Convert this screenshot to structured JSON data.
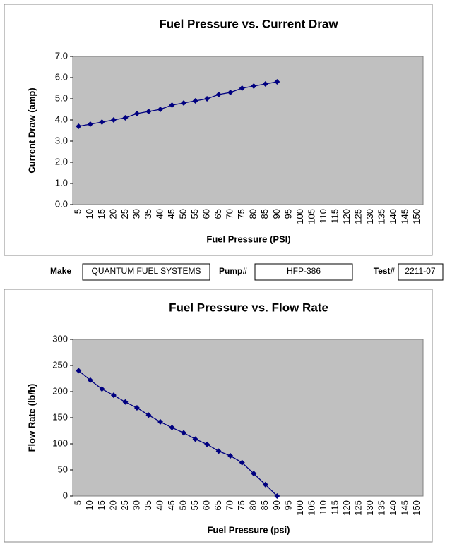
{
  "chart_data": [
    {
      "type": "line",
      "title": "Fuel Pressure vs. Current Draw",
      "x_label": "Fuel Pressure (PSI)",
      "y_label": "Current Draw (amp)",
      "categories": [
        "5",
        "10",
        "15",
        "20",
        "25",
        "30",
        "35",
        "40",
        "45",
        "50",
        "55",
        "60",
        "65",
        "70",
        "75",
        "80",
        "85",
        "90",
        "95",
        "100",
        "105",
        "110",
        "115",
        "120",
        "125",
        "130",
        "135",
        "140",
        "145",
        "150"
      ],
      "values": [
        3.7,
        3.8,
        3.9,
        4.0,
        4.1,
        4.3,
        4.4,
        4.5,
        4.7,
        4.8,
        4.9,
        5.0,
        5.2,
        5.3,
        5.5,
        5.6,
        5.7,
        5.8,
        null,
        null,
        null,
        null,
        null,
        null,
        null,
        null,
        null,
        null,
        null,
        null
      ],
      "color": "#000080",
      "ylim": [
        0,
        7
      ],
      "yticks": [
        {
          "value": 0,
          "label": "0.0"
        },
        {
          "value": 1,
          "label": "1.0"
        },
        {
          "value": 2,
          "label": "2.0"
        },
        {
          "value": 3,
          "label": "3.0"
        },
        {
          "value": 4,
          "label": "4.0"
        },
        {
          "value": 5,
          "label": "5.0"
        },
        {
          "value": 6,
          "label": "6.0"
        },
        {
          "value": 7,
          "label": "7.0"
        }
      ],
      "grid": false
    },
    {
      "type": "line",
      "title": "Fuel Pressure vs. Flow Rate",
      "x_label": "Fuel Pressure (psi)",
      "y_label": "Flow Rate (lb/h)",
      "categories": [
        "5",
        "10",
        "15",
        "20",
        "25",
        "30",
        "35",
        "40",
        "45",
        "50",
        "55",
        "60",
        "65",
        "70",
        "75",
        "80",
        "85",
        "90",
        "95",
        "100",
        "105",
        "110",
        "115",
        "120",
        "125",
        "130",
        "135",
        "140",
        "145",
        "150"
      ],
      "values": [
        240,
        222,
        205,
        193,
        180,
        169,
        155,
        142,
        131,
        121,
        109,
        99,
        86,
        77,
        64,
        43,
        22,
        0,
        null,
        null,
        null,
        null,
        null,
        null,
        null,
        null,
        null,
        null,
        null,
        null
      ],
      "color": "#000080",
      "ylim": [
        0,
        300
      ],
      "yticks": [
        0,
        50,
        100,
        150,
        200,
        250,
        300
      ],
      "grid": false
    }
  ],
  "form": {
    "make_label": "Make",
    "make": "QUANTUM FUEL SYSTEMS",
    "pump_label": "Pump#",
    "pump": "HFP-386",
    "test_label": "Test#",
    "test": "2211-07"
  }
}
